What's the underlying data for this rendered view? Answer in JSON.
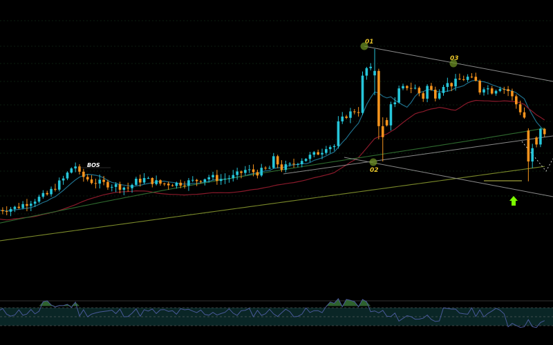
{
  "chart_data": {
    "type": "candlestick",
    "title": "",
    "xlabel": "",
    "ylabel": "",
    "grid": true,
    "price_range": [
      0,
      100
    ],
    "oscillator_range": [
      0,
      100
    ],
    "colors": {
      "background": "#000000",
      "bull": "#26c6da",
      "bear": "#f7941d",
      "grid": "#1f4d2b",
      "ma_fast": "#1e6e8a",
      "ma_mid": "#8b1a2b",
      "ma_slow": "#2f6b2f",
      "ma_slowest": "#7b8a2a",
      "trendline": "#8c8c8c",
      "pivot_marker": "#6b8e23",
      "arrow": "#7cfc00",
      "label": "#e6c229",
      "oscillator": "#4a5a9a",
      "oscillator_fill": "#3a7a3a",
      "oscillator_band": "#0b2a2a"
    },
    "annotations": [
      {
        "type": "label",
        "text": "BOS",
        "index": 58,
        "price": 63
      },
      {
        "type": "pivot",
        "text": "01",
        "index": 93,
        "price": 86
      },
      {
        "type": "pivot",
        "text": "02",
        "index": 95,
        "price": 48
      },
      {
        "type": "pivot",
        "text": "03",
        "index": 116,
        "price": 80
      },
      {
        "type": "arrow-up",
        "index": 131,
        "price": 21
      }
    ],
    "oscillator_levels": [
      75,
      50,
      25
    ]
  }
}
